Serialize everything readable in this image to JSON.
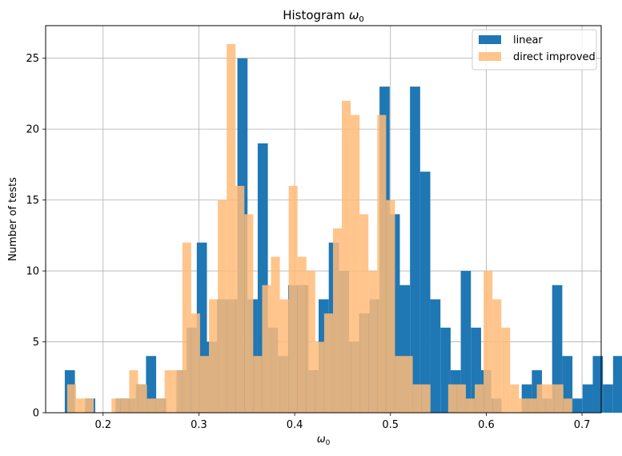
{
  "chart_data": {
    "type": "bar",
    "title_prefix": "Histogram ",
    "title_symbol": "ω",
    "title_subscript": "0",
    "xlabel_symbol": "ω",
    "xlabel_subscript": "0",
    "ylabel": "Number of tests",
    "xlim": [
      0.14,
      0.72
    ],
    "ylim": [
      0,
      27.3
    ],
    "xticks": [
      0.2,
      0.3,
      0.4,
      0.5,
      0.6,
      0.7
    ],
    "xtick_labels": [
      "0.2",
      "0.3",
      "0.4",
      "0.5",
      "0.6",
      "0.7"
    ],
    "yticks": [
      0,
      5,
      10,
      15,
      20,
      25
    ],
    "ytick_labels": [
      "0",
      "5",
      "10",
      "15",
      "20",
      "25"
    ],
    "grid": true,
    "legend_position": "top-right",
    "series": [
      {
        "name": "linear",
        "color": "#1f77b4",
        "opacity": 1,
        "bin_start": 0.16,
        "bin_width": 0.0106,
        "counts": [
          3,
          0,
          1,
          0,
          0,
          1,
          1,
          2,
          4,
          1,
          0,
          3,
          6,
          12,
          5,
          8,
          8,
          25,
          8,
          19,
          6,
          4,
          9,
          9,
          3,
          8,
          12,
          10,
          5,
          7,
          8,
          23,
          14,
          9,
          23,
          17,
          8,
          6,
          3,
          10,
          6,
          3,
          1,
          0,
          0,
          2,
          3,
          1,
          9,
          4,
          1,
          2,
          4,
          2,
          4,
          3,
          1,
          1,
          3,
          0,
          0,
          0,
          0,
          0,
          0,
          0,
          0
        ]
      },
      {
        "name": "direct improved",
        "color": "#ffbb78",
        "opacity": 0.85,
        "bin_start": 0.1625,
        "bin_width": 0.00925,
        "counts": [
          2,
          1,
          1,
          0,
          0,
          1,
          1,
          3,
          2,
          1,
          1,
          3,
          3,
          12,
          7,
          4,
          8,
          15,
          26,
          16,
          14,
          4,
          9,
          11,
          8,
          16,
          11,
          10,
          5,
          7,
          13,
          22,
          21,
          14,
          10,
          21,
          15,
          4,
          4,
          2,
          2,
          0,
          0,
          2,
          2,
          1,
          2,
          10,
          8,
          6,
          2,
          1,
          1,
          2,
          2,
          2,
          1,
          0,
          0,
          0,
          0,
          0,
          0,
          0,
          0,
          0,
          0
        ]
      }
    ]
  }
}
